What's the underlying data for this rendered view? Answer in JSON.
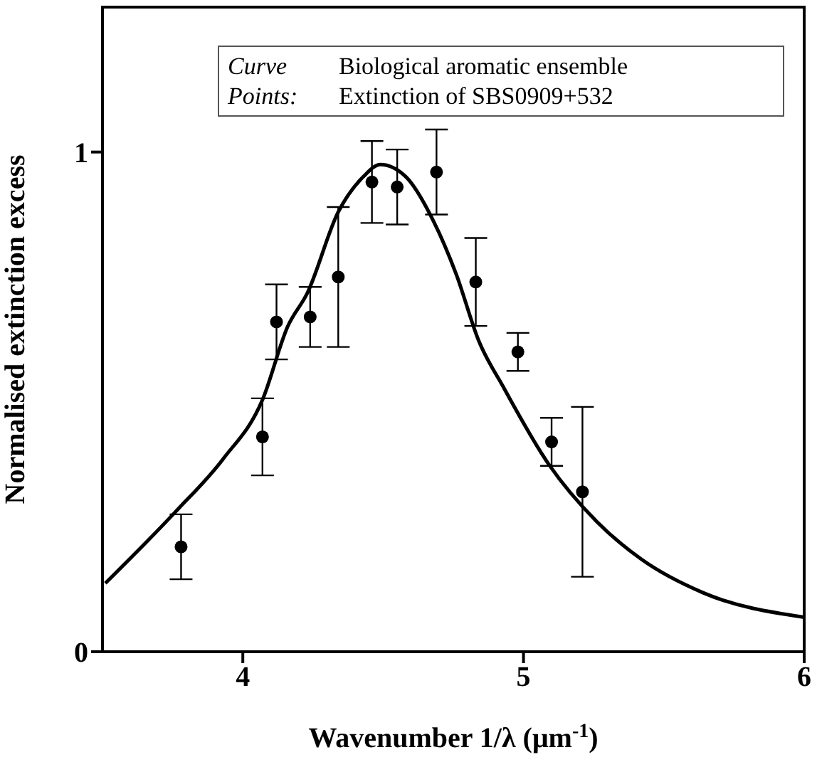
{
  "chart_data": {
    "type": "scatter",
    "xlabel": "Wavenumber 1/λ (μm$^{-1}$)",
    "ylabel": "Normalised extinction excess",
    "annotations": [
      "Curve",
      "Biological aromatic ensemble",
      "Points:",
      "Extinction of SBS0909+532"
    ],
    "xlim": [
      3.5,
      6
    ],
    "xticks": [
      4,
      5,
      6
    ],
    "ylim": [
      0,
      1.29
    ],
    "yticks": [
      0,
      1
    ],
    "marker": "circle",
    "series": [
      {
        "type": "line",
        "color": "#000000",
        "marker": "none",
        "x": [
          3.51,
          3.76,
          3.93,
          4.07,
          4.16,
          4.23,
          4.34,
          4.43,
          4.49,
          4.58,
          4.68,
          4.76,
          4.84,
          4.93,
          5.09,
          5.26,
          5.42,
          5.64,
          6.0
        ],
        "values": [
          0.137,
          0.28,
          0.386,
          0.504,
          0.651,
          0.718,
          0.88,
          0.951,
          0.975,
          0.951,
          0.861,
          0.756,
          0.623,
          0.528,
          0.375,
          0.261,
          0.185,
          0.118,
          0.069
        ]
      },
      {
        "color": "#000000",
        "x": [
          3.78,
          4.07,
          4.12,
          4.24,
          4.34,
          4.46,
          4.55,
          4.69,
          4.83,
          4.98,
          5.1,
          5.21
        ],
        "values": [
          0.21,
          0.43,
          0.66,
          0.67,
          0.75,
          0.94,
          0.93,
          0.96,
          0.74,
          0.6,
          0.42,
          0.32
        ],
        "errors": [
          0.065,
          0.077,
          0.075,
          0.06,
          0.14,
          0.082,
          0.075,
          0.085,
          0.088,
          0.038,
          0.048,
          0.17
        ]
      }
    ]
  }
}
